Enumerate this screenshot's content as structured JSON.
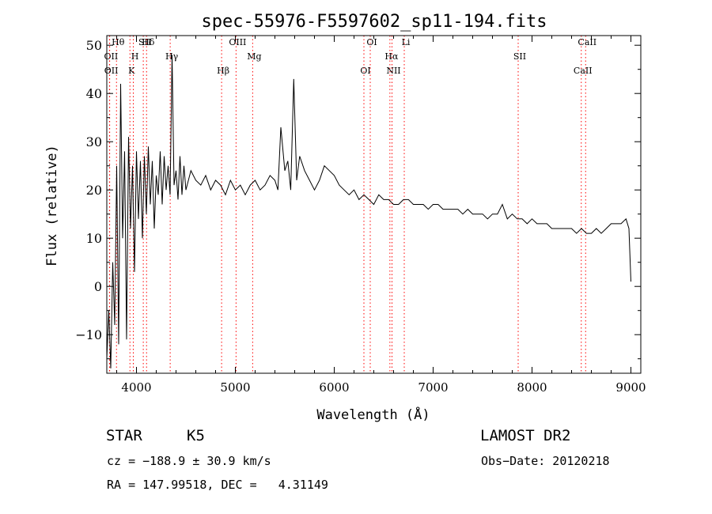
{
  "chart_data": {
    "type": "line",
    "title": "spec-55976-F5597602_sp11-194.fits",
    "xlabel": "Wavelength (Å)",
    "ylabel": "Flux (relative)",
    "xlim": [
      3700,
      9100
    ],
    "ylim": [
      -18,
      52
    ],
    "x_ticks": [
      4000,
      5000,
      6000,
      7000,
      8000,
      9000
    ],
    "y_ticks": [
      -10,
      0,
      10,
      20,
      30,
      40,
      50
    ],
    "line_color": "#000000",
    "marker_color": "#ff0000",
    "series": [
      {
        "x": [
          3700,
          3720,
          3740,
          3760,
          3780,
          3800,
          3820,
          3840,
          3860,
          3880,
          3900,
          3920,
          3940,
          3960,
          3980,
          4000,
          4020,
          4040,
          4060,
          4080,
          4100,
          4120,
          4140,
          4160,
          4180,
          4200,
          4220,
          4240,
          4260,
          4280,
          4300,
          4320,
          4340,
          4360,
          4380,
          4400,
          4420,
          4440,
          4460,
          4480,
          4500,
          4550,
          4600,
          4650,
          4700,
          4750,
          4800,
          4850,
          4900,
          4950,
          5000,
          5050,
          5100,
          5150,
          5200,
          5250,
          5300,
          5350,
          5400,
          5430,
          5460,
          5500,
          5530,
          5560,
          5590,
          5620,
          5650,
          5700,
          5750,
          5800,
          5850,
          5900,
          5950,
          6000,
          6050,
          6100,
          6150,
          6200,
          6250,
          6300,
          6350,
          6400,
          6450,
          6500,
          6550,
          6600,
          6650,
          6700,
          6750,
          6800,
          6850,
          6900,
          6950,
          7000,
          7050,
          7100,
          7150,
          7200,
          7250,
          7300,
          7350,
          7400,
          7450,
          7500,
          7550,
          7600,
          7650,
          7700,
          7750,
          7800,
          7850,
          7900,
          7950,
          8000,
          8050,
          8100,
          8150,
          8200,
          8250,
          8300,
          8350,
          8400,
          8450,
          8500,
          8550,
          8600,
          8650,
          8700,
          8750,
          8800,
          8850,
          8900,
          8950,
          8980,
          9000
        ],
        "y": [
          -15,
          -5,
          -17,
          5,
          -8,
          25,
          -12,
          42,
          10,
          28,
          -11,
          31,
          12,
          25,
          3,
          28,
          14,
          26,
          10,
          27,
          15,
          29,
          17,
          26,
          12,
          23,
          19,
          28,
          17,
          27,
          20,
          25,
          19,
          48,
          21,
          24,
          18,
          27,
          19,
          25,
          20,
          24,
          22,
          21,
          23,
          20,
          22,
          21,
          19,
          22,
          20,
          21,
          19,
          21,
          22,
          20,
          21,
          23,
          22,
          20,
          33,
          24,
          26,
          20,
          43,
          22,
          27,
          24,
          22,
          20,
          22,
          25,
          24,
          23,
          21,
          20,
          19,
          20,
          18,
          19,
          18,
          17,
          19,
          18,
          18,
          17,
          17,
          18,
          18,
          17,
          17,
          17,
          16,
          17,
          17,
          16,
          16,
          16,
          16,
          15,
          16,
          15,
          15,
          15,
          14,
          15,
          15,
          17,
          14,
          15,
          14,
          14,
          13,
          14,
          13,
          13,
          13,
          12,
          12,
          12,
          12,
          12,
          11,
          12,
          11,
          11,
          12,
          11,
          12,
          13,
          13,
          13,
          14,
          12,
          1
        ]
      }
    ],
    "lines_top": [
      {
        "label": "Hθ",
        "x": 3798
      },
      {
        "label": "OII",
        "x": 3727
      },
      {
        "label": "OII",
        "x": 3729
      },
      {
        "label": "SII",
        "x": 4069
      },
      {
        "label": "H",
        "x": 3968
      },
      {
        "label": "K",
        "x": 3934
      },
      {
        "label": "Hδ",
        "x": 4102
      },
      {
        "label": "Hγ",
        "x": 4341
      },
      {
        "label": "Hβ",
        "x": 4861
      },
      {
        "label": "OIII",
        "x": 5007
      },
      {
        "label": "Mg",
        "x": 5175
      },
      {
        "label": "OI",
        "x": 6300
      },
      {
        "label": "OI",
        "x": 6364
      },
      {
        "label": "Hα",
        "x": 6563
      },
      {
        "label": "NII",
        "x": 6584
      },
      {
        "label": "Li",
        "x": 6708
      },
      {
        "label": "SII",
        "x": 7860
      },
      {
        "label": "CaII",
        "x": 8498
      },
      {
        "label": "CaII",
        "x": 8542
      }
    ]
  },
  "info": {
    "class_label": "STAR",
    "subclass": "K5",
    "survey": "LAMOST DR2",
    "cz_text": "cz = −188.9 ± 30.9 km/s",
    "obs_date": "Obs−Date: 20120218",
    "coords": "RA = 147.99518, DEC =   4.31149"
  }
}
